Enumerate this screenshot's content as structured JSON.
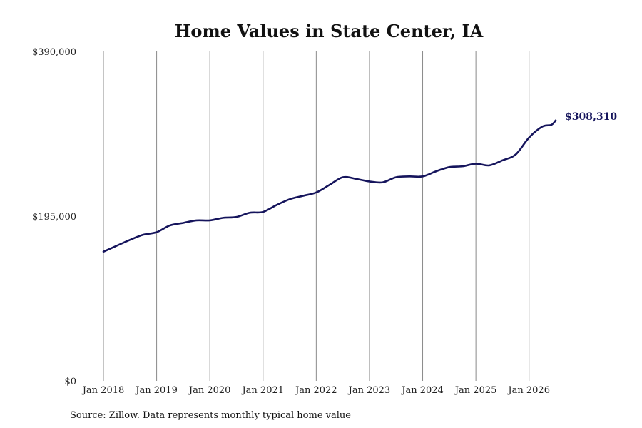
{
  "chart_data": {
    "type": "line",
    "title": "Home Values in State Center, IA",
    "xlabel": "",
    "ylabel": "",
    "ylim": [
      0,
      390000
    ],
    "y_ticks": [
      0,
      195000,
      390000
    ],
    "y_tick_labels": [
      "$0",
      "$195,000",
      "$390,000"
    ],
    "x_tick_labels": [
      "Jan 2018",
      "Jan 2019",
      "Jan 2020",
      "Jan 2021",
      "Jan 2022",
      "Jan 2023",
      "Jan 2024",
      "Jan 2025",
      "Jan 2026"
    ],
    "x_range": [
      "2018-01",
      "2026-07"
    ],
    "grid": "vertical",
    "line_color": "#15145c",
    "end_label": "$308,310",
    "series": [
      {
        "values": [
          {
            "x": "2018-01",
            "y": 153000
          },
          {
            "x": "2018-04",
            "y": 160000
          },
          {
            "x": "2018-07",
            "y": 167000
          },
          {
            "x": "2018-10",
            "y": 173000
          },
          {
            "x": "2019-01",
            "y": 176000
          },
          {
            "x": "2019-04",
            "y": 184000
          },
          {
            "x": "2019-07",
            "y": 187000
          },
          {
            "x": "2019-10",
            "y": 190000
          },
          {
            "x": "2020-01",
            "y": 190000
          },
          {
            "x": "2020-04",
            "y": 193000
          },
          {
            "x": "2020-07",
            "y": 194000
          },
          {
            "x": "2020-10",
            "y": 199000
          },
          {
            "x": "2021-01",
            "y": 200000
          },
          {
            "x": "2021-04",
            "y": 208000
          },
          {
            "x": "2021-07",
            "y": 215000
          },
          {
            "x": "2021-10",
            "y": 219000
          },
          {
            "x": "2022-01",
            "y": 223000
          },
          {
            "x": "2022-04",
            "y": 232000
          },
          {
            "x": "2022-07",
            "y": 241000
          },
          {
            "x": "2022-10",
            "y": 239000
          },
          {
            "x": "2023-01",
            "y": 236000
          },
          {
            "x": "2023-04",
            "y": 235000
          },
          {
            "x": "2023-07",
            "y": 241000
          },
          {
            "x": "2023-10",
            "y": 242000
          },
          {
            "x": "2024-01",
            "y": 242000
          },
          {
            "x": "2024-04",
            "y": 248000
          },
          {
            "x": "2024-07",
            "y": 253000
          },
          {
            "x": "2024-10",
            "y": 254000
          },
          {
            "x": "2025-01",
            "y": 257000
          },
          {
            "x": "2025-04",
            "y": 255000
          },
          {
            "x": "2025-07",
            "y": 261000
          },
          {
            "x": "2025-10",
            "y": 268000
          },
          {
            "x": "2026-01",
            "y": 288000
          },
          {
            "x": "2026-04",
            "y": 301000
          },
          {
            "x": "2026-06",
            "y": 303000
          },
          {
            "x": "2026-07",
            "y": 308310
          }
        ]
      }
    ]
  },
  "footer": {
    "source": "Source: Zillow. Data represents monthly typical home value"
  }
}
